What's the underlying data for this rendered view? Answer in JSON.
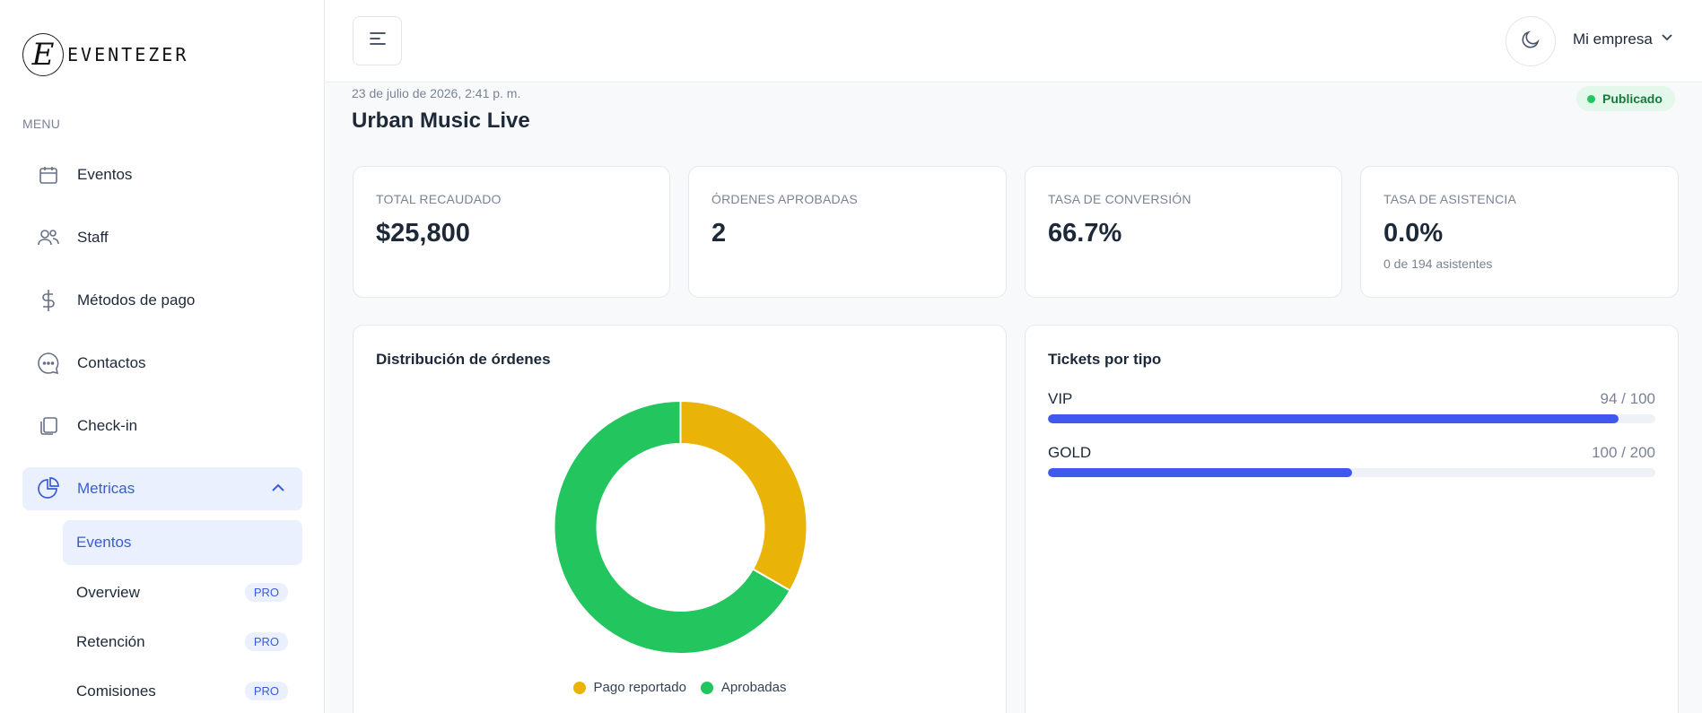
{
  "brand": {
    "mark": "E",
    "name": "EVENTEZER"
  },
  "sidebar": {
    "heading": "MENU",
    "items": [
      {
        "label": "Eventos",
        "icon": "calendar-icon"
      },
      {
        "label": "Staff",
        "icon": "users-icon"
      },
      {
        "label": "Métodos de pago",
        "icon": "dollar-icon"
      },
      {
        "label": "Contactos",
        "icon": "chat-icon"
      },
      {
        "label": "Check-in",
        "icon": "copy-icon"
      },
      {
        "label": "Metricas",
        "icon": "pie-chart-icon",
        "active": true,
        "expanded": true
      }
    ],
    "subitems": [
      {
        "label": "Eventos",
        "active": true
      },
      {
        "label": "Overview",
        "badge": "PRO"
      },
      {
        "label": "Retención",
        "badge": "PRO"
      },
      {
        "label": "Comisiones",
        "badge": "PRO"
      }
    ]
  },
  "header": {
    "company": "Mi empresa"
  },
  "event": {
    "date": "23 de julio de 2026, 2:41 p. m.",
    "title": "Urban Music Live",
    "status": "Publicado"
  },
  "kpis": [
    {
      "label": "TOTAL RECAUDADO",
      "value": "$25,800"
    },
    {
      "label": "ÓRDENES APROBADAS",
      "value": "2"
    },
    {
      "label": "TASA DE CONVERSIÓN",
      "value": "66.7%"
    },
    {
      "label": "TASA DE ASISTENCIA",
      "value": "0.0%",
      "sub": "0 de 194 asistentes"
    }
  ],
  "orders_panel": {
    "title": "Distribución de órdenes"
  },
  "tickets_panel": {
    "title": "Tickets por tipo",
    "tickets": [
      {
        "name": "VIP",
        "count": "94 / 100",
        "sold": 94,
        "capacity": 100
      },
      {
        "name": "GOLD",
        "count": "100 / 200",
        "sold": 100,
        "capacity": 200
      }
    ]
  },
  "colors": {
    "accent": "#3a5bd9",
    "bar": "#4057f0",
    "pago_reportado": "#eab308",
    "aprobadas": "#22c55e"
  },
  "chart_data": {
    "type": "pie",
    "title": "Distribución de órdenes",
    "categories": [
      "Pago reportado",
      "Aprobadas"
    ],
    "values": [
      1,
      2
    ],
    "colors": [
      "#eab308",
      "#22c55e"
    ],
    "legend": "bottom"
  }
}
